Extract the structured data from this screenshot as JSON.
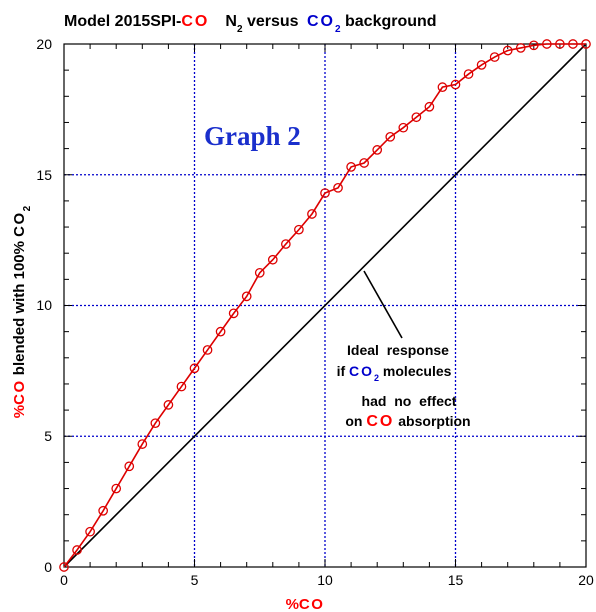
{
  "chart_data": {
    "type": "scatter",
    "title": {
      "prefix": "Model  2015SPI-",
      "co": "CO",
      "n2_main": "N",
      "n2_sub": "2",
      "mid": " versus ",
      "co2_main": "CO",
      "co2_sub": "2",
      "suffix": " background"
    },
    "graph_label": "Graph 2",
    "xlabel": {
      "pct": "%",
      "co": "CO"
    },
    "ylabel": {
      "pct": "%",
      "co": "CO",
      "mid": " blended with 100% ",
      "co2_main": "CO",
      "co2_sub": "2"
    },
    "xlim": [
      0,
      20
    ],
    "ylim": [
      0,
      20
    ],
    "x_ticks": [
      "0",
      "5",
      "10",
      "15",
      "20"
    ],
    "y_ticks": [
      "0",
      "5",
      "10",
      "15",
      "20"
    ],
    "grid": true,
    "colors": {
      "data": "#dd0000",
      "co": "#ff0000",
      "co2": "#0000cc",
      "grid": "#0000cc",
      "ideal": "#000000"
    },
    "series": [
      {
        "x": [
          0,
          0.5,
          1,
          1.5,
          2,
          2.5,
          3,
          3.5,
          4,
          4.5,
          5,
          5.5,
          6,
          6.5,
          7,
          7.5,
          8,
          8.5,
          9,
          9.5,
          10,
          10.5,
          11,
          11.5,
          12,
          12.5,
          13,
          13.5,
          14,
          14.5,
          15,
          15.5,
          16,
          16.5,
          17,
          17.5,
          18,
          18.5,
          19,
          19.5,
          20
        ],
        "y": [
          0,
          0.65,
          1.35,
          2.15,
          3.0,
          3.85,
          4.7,
          5.5,
          6.2,
          6.9,
          7.6,
          8.3,
          9.0,
          9.7,
          10.35,
          11.25,
          11.75,
          12.35,
          12.9,
          13.5,
          14.3,
          14.5,
          15.3,
          15.45,
          15.95,
          16.45,
          16.8,
          17.2,
          17.6,
          18.35,
          18.45,
          18.85,
          19.2,
          19.5,
          19.75,
          19.85,
          19.95,
          20.0,
          20.0,
          20.0,
          20.0
        ]
      },
      {
        "x": [
          0,
          20
        ],
        "y": [
          0,
          20
        ]
      }
    ],
    "annotation": {
      "line1": "Ideal  response",
      "line2_pre": "if ",
      "line2_co2": "CO",
      "line2_sub": "2",
      "line2_post": " molecules",
      "line3": "had  no  effect",
      "line4_pre": "on ",
      "line4_co": "CO",
      "line4_post": " absorption"
    }
  }
}
